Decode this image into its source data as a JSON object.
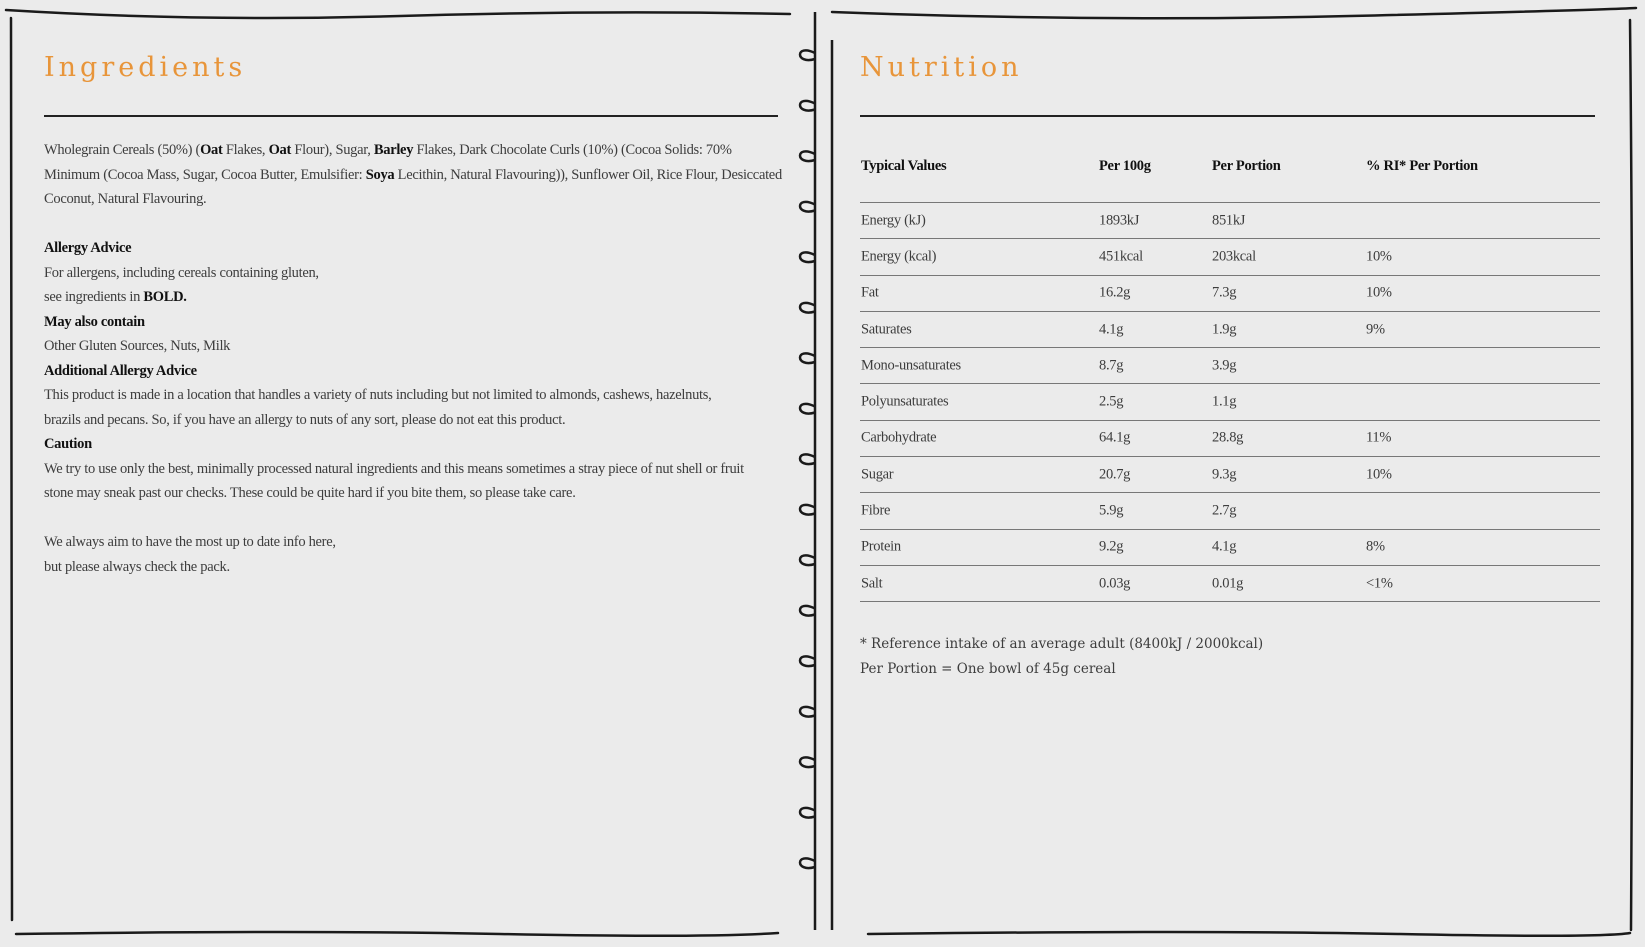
{
  "ingredients": {
    "title": "Ingredients",
    "text_parts": [
      "Wholegrain Cereals (50%) (",
      "Oat",
      " Flakes, ",
      "Oat",
      " Flour), Sugar, ",
      "Barley",
      " Flakes, Dark Chocolate Curls (10%) (Cocoa Solids: 70% Minimum (Cocoa Mass, Sugar, Cocoa Butter, Emulsifier: ",
      "Soya",
      " Lecithin, Natural Flavouring)), Sunflower Oil, Rice Flour, Desiccated Coconut, Natural Flavouring."
    ],
    "allergy_heading": "Allergy Advice",
    "allergy_line1": "For allergens, including cereals containing gluten,",
    "allergy_line2_prefix": "see ingredients in ",
    "allergy_line2_bold": "BOLD.",
    "may_contain_heading": "May also contain",
    "may_contain_text": "Other Gluten Sources, Nuts, Milk",
    "additional_heading": "Additional Allergy Advice",
    "additional_text": "This product is made in a location that handles a variety of nuts including but not limited to almonds, cashews, hazelnuts, brazils and pecans. So, if you have an allergy to nuts of any sort, please do not eat this product.",
    "caution_heading": "Caution",
    "caution_text": "We try to use only the best, minimally processed natural ingredients and this means sometimes a stray piece of nut shell or fruit stone may sneak past our checks. These could be quite hard if you bite them, so please take care.",
    "note_line1": "We always aim to have the most up to date info here,",
    "note_line2": "but please always check the pack."
  },
  "nutrition": {
    "title": "Nutrition",
    "headers": [
      "Typical Values",
      "Per 100g",
      "Per Portion",
      "% RI* Per Portion"
    ],
    "rows": [
      [
        "Energy (kJ)",
        "1893kJ",
        "851kJ",
        ""
      ],
      [
        "Energy (kcal)",
        "451kcal",
        "203kcal",
        "10%"
      ],
      [
        "Fat",
        "16.2g",
        "7.3g",
        "10%"
      ],
      [
        "Saturates",
        "4.1g",
        "1.9g",
        "9%"
      ],
      [
        "Mono-unsaturates",
        "8.7g",
        "3.9g",
        ""
      ],
      [
        "Polyunsaturates",
        "2.5g",
        "1.1g",
        ""
      ],
      [
        "Carbohydrate",
        "64.1g",
        "28.8g",
        "11%"
      ],
      [
        "Sugar",
        "20.7g",
        "9.3g",
        "10%"
      ],
      [
        "Fibre",
        "5.9g",
        "2.7g",
        ""
      ],
      [
        "Protein",
        "9.2g",
        "4.1g",
        "8%"
      ],
      [
        "Salt",
        "0.03g",
        "0.01g",
        "<1%"
      ]
    ],
    "footnote1": "* Reference intake of an average adult (8400kJ / 2000kcal)",
    "footnote2": "Per Portion = One bowl of 45g cereal"
  },
  "colors": {
    "title": "#e8953a",
    "background": "#ebebeb",
    "ink": "#222222"
  }
}
